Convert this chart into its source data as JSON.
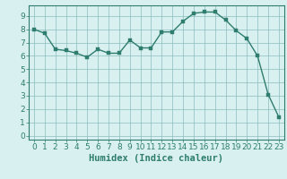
{
  "x": [
    0,
    1,
    2,
    3,
    4,
    5,
    6,
    7,
    8,
    9,
    10,
    11,
    12,
    13,
    14,
    15,
    16,
    17,
    18,
    19,
    20,
    21,
    22,
    23
  ],
  "y": [
    8.0,
    7.7,
    6.5,
    6.4,
    6.2,
    5.9,
    6.5,
    6.2,
    6.2,
    7.2,
    6.6,
    6.6,
    7.8,
    7.8,
    8.6,
    9.2,
    9.3,
    9.3,
    8.7,
    7.9,
    7.3,
    6.0,
    3.1,
    1.4
  ],
  "line_color": "#2e7d6e",
  "bg_color": "#d9f0f0",
  "grid_color": "#8bbcbc",
  "xlabel": "Humidex (Indice chaleur)",
  "xlabel_fontsize": 7.5,
  "tick_fontsize": 6.5,
  "marker_size": 2.5,
  "linewidth": 1.0,
  "xlim_min": -0.5,
  "xlim_max": 23.5,
  "ylim_min": -0.3,
  "ylim_max": 9.8
}
